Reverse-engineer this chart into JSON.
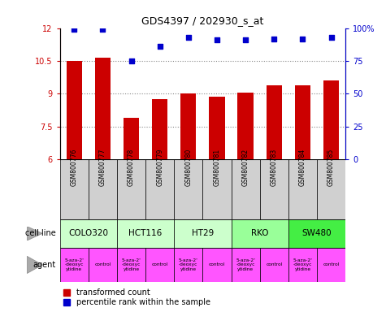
{
  "title": "GDS4397 / 202930_s_at",
  "samples": [
    "GSM800776",
    "GSM800777",
    "GSM800778",
    "GSM800779",
    "GSM800780",
    "GSM800781",
    "GSM800782",
    "GSM800783",
    "GSM800784",
    "GSM800785"
  ],
  "bar_values": [
    10.5,
    10.65,
    7.9,
    8.75,
    9.0,
    8.85,
    9.05,
    9.4,
    9.4,
    9.6
  ],
  "dot_values": [
    99,
    99,
    75,
    86,
    93,
    91,
    91,
    92,
    92,
    93
  ],
  "bar_color": "#cc0000",
  "dot_color": "#0000cc",
  "ylim_left": [
    6,
    12
  ],
  "ylim_right": [
    0,
    100
  ],
  "yticks_left": [
    6,
    7.5,
    9,
    10.5,
    12
  ],
  "yticks_right": [
    0,
    25,
    50,
    75,
    100
  ],
  "sample_bg_color": "#d0d0d0",
  "cell_lines": [
    {
      "label": "COLO320",
      "start": 0,
      "end": 2,
      "color": "#ccffcc"
    },
    {
      "label": "HCT116",
      "start": 2,
      "end": 4,
      "color": "#ccffcc"
    },
    {
      "label": "HT29",
      "start": 4,
      "end": 6,
      "color": "#ccffcc"
    },
    {
      "label": "RKO",
      "start": 6,
      "end": 8,
      "color": "#99ff99"
    },
    {
      "label": "SW480",
      "start": 8,
      "end": 10,
      "color": "#44ee44"
    }
  ],
  "agents": [
    {
      "label": "5-aza-2'\n-deoxyc\nytidine",
      "start": 0,
      "end": 1,
      "color": "#ff55ff"
    },
    {
      "label": "control",
      "start": 1,
      "end": 2,
      "color": "#ff55ff"
    },
    {
      "label": "5-aza-2'\n-deoxyc\nytidine",
      "start": 2,
      "end": 3,
      "color": "#ff55ff"
    },
    {
      "label": "control",
      "start": 3,
      "end": 4,
      "color": "#ff55ff"
    },
    {
      "label": "5-aza-2'\n-deoxyc\nytidine",
      "start": 4,
      "end": 5,
      "color": "#ff55ff"
    },
    {
      "label": "control",
      "start": 5,
      "end": 6,
      "color": "#ff55ff"
    },
    {
      "label": "5-aza-2'\n-deoxyc\nytidine",
      "start": 6,
      "end": 7,
      "color": "#ff55ff"
    },
    {
      "label": "control",
      "start": 7,
      "end": 8,
      "color": "#ff55ff"
    },
    {
      "label": "5-aza-2'\n-deoxyc\nytidine",
      "start": 8,
      "end": 9,
      "color": "#ff55ff"
    },
    {
      "label": "control",
      "start": 9,
      "end": 10,
      "color": "#ff55ff"
    }
  ],
  "legend_transformed": "transformed count",
  "legend_percentile": "percentile rank within the sample",
  "cell_line_label": "cell line",
  "agent_label": "agent",
  "bar_width": 0.55,
  "background_color": "#ffffff",
  "grid_color": "#888888"
}
